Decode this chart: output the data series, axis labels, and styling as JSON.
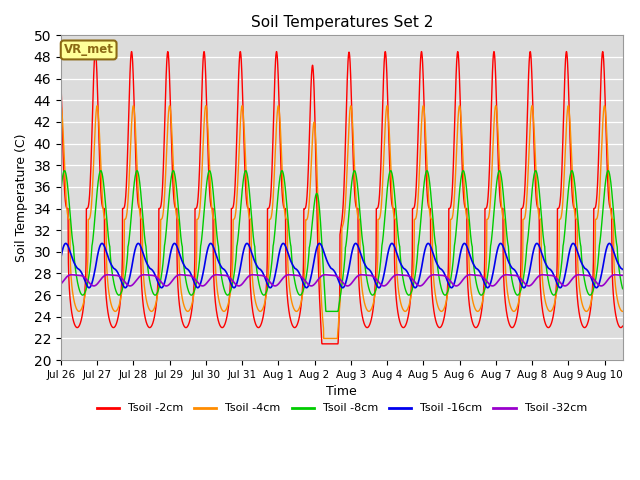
{
  "title": "Soil Temperatures Set 2",
  "xlabel": "Time",
  "ylabel": "Soil Temperature (C)",
  "ylim": [
    20,
    50
  ],
  "bg_color": "#dcdcdc",
  "annotation_text": "VR_met",
  "annotation_bg": "#ffff99",
  "annotation_border": "#8B6914",
  "series_colors": {
    "Tsoil -2cm": "#ff0000",
    "Tsoil -4cm": "#ff8c00",
    "Tsoil -8cm": "#00cc00",
    "Tsoil -16cm": "#0000ee",
    "Tsoil -32cm": "#9900cc"
  },
  "x_tick_labels": [
    "Jul 26",
    "Jul 27",
    "Jul 28",
    "Jul 29",
    "Jul 30",
    "Jul 31",
    "Aug 1",
    "Aug 2",
    "Aug 3",
    "Aug 4",
    "Aug 5",
    "Aug 6",
    "Aug 7",
    "Aug 8",
    "Aug 9",
    "Aug 10"
  ],
  "num_days": 15.5,
  "n_points": 3000
}
